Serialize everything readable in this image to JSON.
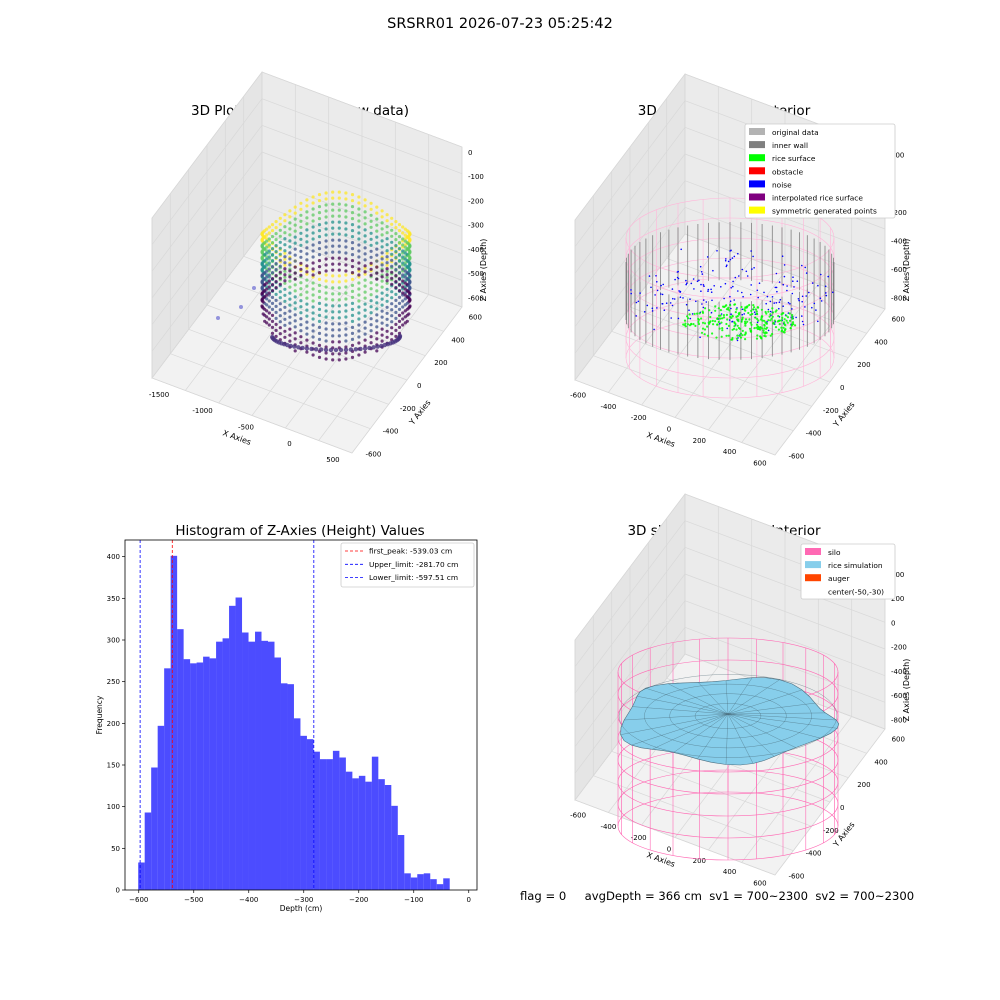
{
  "suptitle": "SRSRR01 2026-07-23 05:25:42",
  "panels": {
    "raw": {
      "title": "3D Plot of Silo Interior(row data)",
      "xlabel": "X Axies",
      "ylabel": "Y Axies",
      "zlabel": "Z Axies (Depth)",
      "xticks": [
        "-1500",
        "-1000",
        "-500",
        "0",
        "500"
      ],
      "yticks": [
        "600",
        "400",
        "200",
        "0",
        "-200",
        "-400",
        "-600"
      ],
      "zticks": [
        "0",
        "-100",
        "-200",
        "-300",
        "-400",
        "-500",
        "-600"
      ]
    },
    "classify": {
      "title": "3D classify of Silo Interior",
      "xlabel": "X Axies",
      "ylabel": "Y Axies",
      "zlabel": "Z Axies (Depth)",
      "xticks": [
        "-600",
        "-400",
        "-200",
        "0",
        "200",
        "400",
        "600"
      ],
      "yticks": [
        "600",
        "400",
        "200",
        "0",
        "-200",
        "-400",
        "-600"
      ],
      "zticks": [
        "200",
        "0",
        "-200",
        "-400",
        "-600",
        "-800"
      ],
      "legend": [
        {
          "label": "original data",
          "color": "#b3b3b3"
        },
        {
          "label": "inner wall",
          "color": "#808080"
        },
        {
          "label": "rice surface",
          "color": "#00ff00"
        },
        {
          "label": "obstacle",
          "color": "#ff0000"
        },
        {
          "label": "noise",
          "color": "#0000ff"
        },
        {
          "label": "interpolated rice surface",
          "color": "#800080"
        },
        {
          "label": "symmetric generated points",
          "color": "#ffff00"
        }
      ]
    },
    "simulation": {
      "title": "3D simulation of Silo Interior",
      "xlabel": "X Axies",
      "ylabel": "Y Axies",
      "zlabel": "Z Axies (Depth)",
      "xticks": [
        "-600",
        "-400",
        "-200",
        "0",
        "200",
        "400",
        "600"
      ],
      "yticks": [
        "600",
        "400",
        "200",
        "0",
        "-200",
        "-400",
        "-600"
      ],
      "zticks": [
        "400",
        "200",
        "0",
        "-200",
        "-400",
        "-600",
        "-800"
      ],
      "legend": [
        {
          "label": "silo",
          "color": "#ff69b4"
        },
        {
          "label": "rice simulation",
          "color": "#87ceeb"
        },
        {
          "label": "auger",
          "color": "#ff4500"
        },
        {
          "label": "center(-50,-30)",
          "color": ""
        }
      ]
    }
  },
  "chart_data": {
    "type": "bar",
    "title": "Histogram of Z-Axies (Height) Values",
    "xlabel": "Depth (cm)",
    "ylabel": "Frequency",
    "xlim": [
      -625,
      15
    ],
    "ylim": [
      0,
      420
    ],
    "xticks": [
      -600,
      -500,
      -400,
      -300,
      -200,
      -100,
      0
    ],
    "yticks": [
      0,
      50,
      100,
      150,
      200,
      250,
      300,
      350,
      400
    ],
    "bar_color": "#0000ff",
    "bin_start": -601,
    "bin_width": 11.8,
    "values": [
      33,
      93,
      147,
      197,
      266,
      401,
      313,
      277,
      272,
      273,
      280,
      278,
      298,
      302,
      341,
      351,
      309,
      298,
      310,
      299,
      298,
      279,
      248,
      247,
      206,
      185,
      181,
      166,
      157,
      157,
      167,
      159,
      142,
      134,
      137,
      130,
      160,
      133,
      126,
      101,
      66,
      20,
      15,
      19,
      20,
      13,
      7,
      14
    ],
    "vlines": [
      {
        "label": "first_peak: -539.03 cm",
        "x": -539.03,
        "color": "#ff0000"
      },
      {
        "label": "Upper_limit: -281.70 cm",
        "x": -281.7,
        "color": "#0000ff"
      },
      {
        "label": "Lower_limit: -597.51 cm",
        "x": -597.51,
        "color": "#0000ff"
      }
    ]
  },
  "footer": {
    "flag": "flag = 0",
    "avg": "avgDepth = 366 cm",
    "sv1": "sv1 = 700~2300",
    "sv2": "sv2 = 700~2300"
  }
}
